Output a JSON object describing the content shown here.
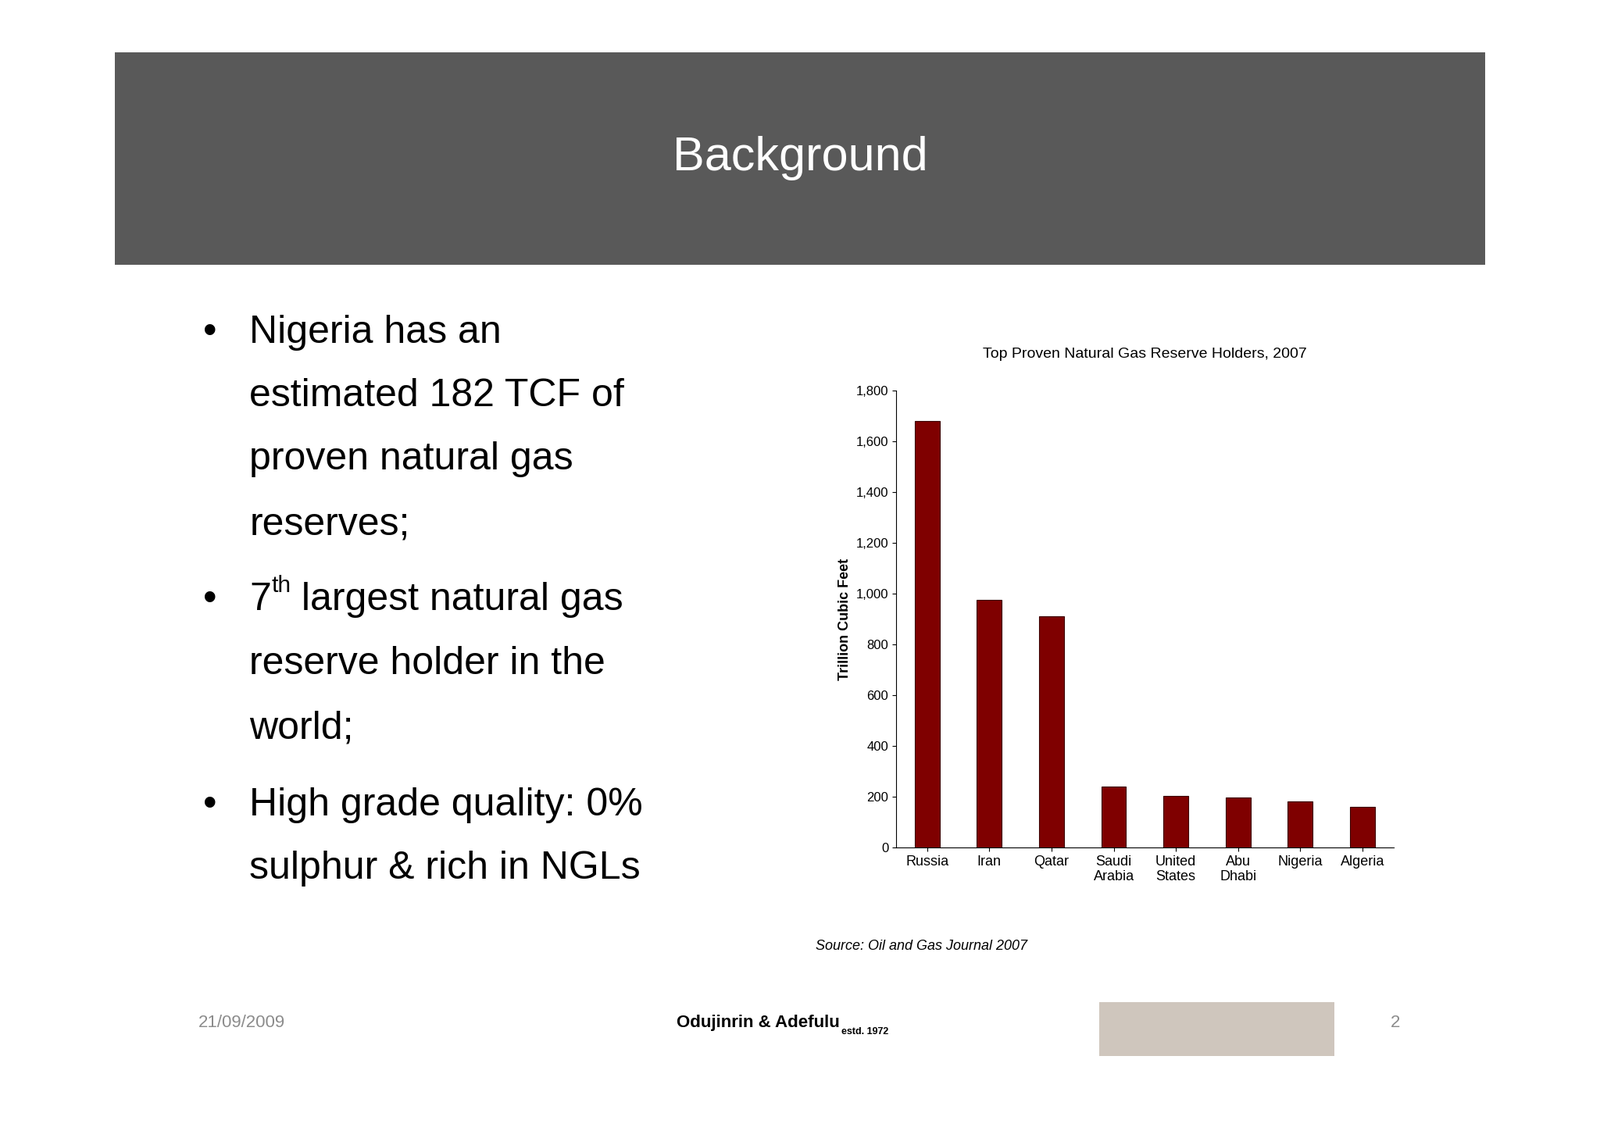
{
  "slide": {
    "title": "Background",
    "bullet": "•",
    "bullets": [
      [
        "Nigeria has an",
        "estimated 182 TCF of",
        "proven natural gas",
        "reserves;"
      ],
      [
        {
          "base": "7",
          "sup": "th",
          "rest": " largest natural gas"
        },
        "reserve holder in the",
        "world;"
      ],
      [
        "High grade quality: 0%",
        "sulphur & rich in NGLs"
      ]
    ],
    "footer": {
      "date": "21/09/2009",
      "firm": "Odujinrin & Adefulu",
      "firm_sub": "estd. 1972",
      "page": "2"
    }
  },
  "chart_data": {
    "type": "bar",
    "title": "Top Proven Natural Gas Reserve Holders, 2007",
    "y_label": "Trillion Cubic Feet",
    "categories": [
      "Russia",
      "Iran",
      "Qatar",
      "Saudi\nArabia",
      "United\nStates",
      "Abu\nDhabi",
      "Nigeria",
      "Algeria"
    ],
    "values": [
      1680,
      974,
      911,
      240,
      204,
      198,
      182,
      159
    ],
    "color": "#7f0000",
    "ylim": [
      0,
      1800
    ],
    "yticks": [
      0,
      200,
      400,
      600,
      800,
      {
        "value": 1000,
        "label": "1,000"
      },
      {
        "value": 1200,
        "label": "1,200"
      },
      {
        "value": 1400,
        "label": "1,400"
      },
      {
        "value": 1600,
        "label": "1,600"
      },
      {
        "value": 1800,
        "label": "1,800"
      }
    ],
    "grid": false,
    "source": "Source: Oil and Gas Journal 2007"
  }
}
